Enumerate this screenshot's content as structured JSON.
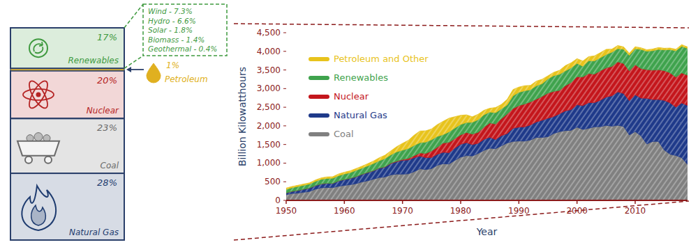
{
  "chart_data": [
    {
      "type": "stacked_bar",
      "stacked": true,
      "data_labels": true,
      "tick_labels": false,
      "series": [
        {
          "name": "Natural Gas",
          "color": "#1f3c70",
          "values": [
            28
          ],
          "value_labels": [
            "28%"
          ]
        },
        {
          "name": "Coal",
          "color": "#6b6b6b",
          "values": [
            23
          ],
          "value_labels": [
            "23%"
          ]
        },
        {
          "name": "Nuclear",
          "color": "#b52424",
          "values": [
            20
          ],
          "value_labels": [
            "20%"
          ]
        },
        {
          "name": "Petroleum",
          "color": "#e0b020",
          "values": [
            1
          ],
          "value_labels": [
            "1%"
          ]
        },
        {
          "name": "Renewables",
          "color": "#3f9a3f",
          "values": [
            17
          ],
          "value_labels": [
            "17%"
          ]
        }
      ],
      "annotations": [
        "Wind - 7.3%",
        "Hydro - 6.6%",
        "Solar - 1.8%",
        "Biomass - 1.4%",
        "Geothermal - 0.4%"
      ]
    },
    {
      "type": "area",
      "stacked": true,
      "legend": "upper left",
      "xlabel": "Year",
      "ylabel": "Billion Kilowatthours",
      "xlim": [
        1950,
        2019
      ],
      "xticks": [
        1950,
        1960,
        1970,
        1980,
        1990,
        2000,
        2010
      ],
      "ylim": [
        0,
        4500
      ],
      "yticks": [
        0,
        500,
        {
          "value": 1000,
          "label": "1,000"
        },
        {
          "value": 1500,
          "label": "1,500"
        },
        {
          "value": 2000,
          "label": "2,000"
        },
        {
          "value": 2500,
          "label": "2,500"
        },
        {
          "value": 3000,
          "label": "3,000"
        },
        {
          "value": 3500,
          "label": "3,500"
        },
        {
          "value": 4000,
          "label": "4,000"
        },
        {
          "value": 4500,
          "label": "4,500"
        }
      ],
      "x": [
        1950,
        1951,
        1952,
        1953,
        1954,
        1955,
        1956,
        1957,
        1958,
        1959,
        1960,
        1961,
        1962,
        1963,
        1964,
        1965,
        1966,
        1967,
        1968,
        1969,
        1970,
        1971,
        1972,
        1973,
        1974,
        1975,
        1976,
        1977,
        1978,
        1979,
        1980,
        1981,
        1982,
        1983,
        1984,
        1985,
        1986,
        1987,
        1988,
        1989,
        1990,
        1991,
        1992,
        1993,
        1994,
        1995,
        1996,
        1997,
        1998,
        1999,
        2000,
        2001,
        2002,
        2003,
        2004,
        2005,
        2006,
        2007,
        2008,
        2009,
        2010,
        2011,
        2012,
        2013,
        2014,
        2015,
        2016,
        2017,
        2018,
        2019
      ],
      "series": [
        {
          "name": "Coal",
          "color": "#808080",
          "values": [
            155,
            185,
            195,
            219,
            239,
            301,
            338,
            346,
            344,
            378,
            403,
            422,
            450,
            494,
            526,
            571,
            613,
            630,
            685,
            706,
            704,
            713,
            771,
            848,
            828,
            853,
            944,
            985,
            976,
            1075,
            1162,
            1203,
            1192,
            1259,
            1342,
            1402,
            1386,
            1464,
            1541,
            1584,
            1594,
            1592,
            1621,
            1690,
            1691,
            1709,
            1796,
            1845,
            1874,
            1881,
            1966,
            1904,
            1933,
            1974,
            1978,
            2013,
            1991,
            2016,
            1986,
            1756,
            1847,
            1733,
            1514,
            1581,
            1582,
            1352,
            1239,
            1206,
            1146,
            965
          ]
        },
        {
          "name": "Natural Gas",
          "color": "#1f3a8a",
          "values": [
            45,
            57,
            72,
            81,
            94,
            95,
            104,
            114,
            111,
            146,
            158,
            169,
            184,
            202,
            220,
            222,
            251,
            265,
            304,
            333,
            373,
            374,
            376,
            341,
            320,
            300,
            295,
            306,
            305,
            329,
            346,
            346,
            305,
            274,
            297,
            292,
            249,
            273,
            253,
            352,
            373,
            382,
            404,
            415,
            460,
            496,
            455,
            479,
            531,
            556,
            601,
            639,
            691,
            650,
            710,
            761,
            816,
            897,
            883,
            921,
            988,
            1014,
            1226,
            1125,
            1127,
            1333,
            1379,
            1297,
            1469,
            1586
          ]
        },
        {
          "name": "Nuclear",
          "color": "#c4161c",
          "values": [
            0,
            0,
            0,
            0,
            0,
            0,
            0,
            0,
            0.2,
            0.2,
            0.5,
            1.7,
            2.3,
            3.2,
            3.3,
            3.7,
            5.5,
            7.7,
            12.5,
            13.9,
            21.8,
            38.1,
            54.1,
            83.5,
            114,
            173,
            191,
            251,
            276,
            255,
            251,
            273,
            283,
            294,
            328,
            384,
            414,
            455,
            527,
            529,
            577,
            613,
            619,
            610,
            640,
            673,
            675,
            629,
            674,
            728,
            754,
            769,
            780,
            764,
            789,
            782,
            787,
            806,
            806,
            799,
            807,
            790,
            769,
            789,
            797,
            797,
            806,
            805,
            807,
            809
          ]
        },
        {
          "name": "Renewables",
          "color": "#3fa34d",
          "values": [
            96,
            101,
            106,
            106,
            107,
            113,
            123,
            130,
            140,
            138,
            146,
            152,
            169,
            166,
            177,
            194,
            195,
            222,
            223,
            251,
            248,
            267,
            276,
            275,
            304,
            303,
            287,
            223,
            284,
            284,
            279,
            267,
            317,
            341,
            331,
            294,
            305,
            265,
            242,
            340,
            357,
            356,
            327,
            360,
            340,
            384,
            422,
            432,
            398,
            393,
            357,
            288,
            344,
            355,
            351,
            358,
            385,
            352,
            380,
            417,
            427,
            513,
            494,
            522,
            546,
            556,
            624,
            708,
            713,
            720
          ]
        },
        {
          "name": "Petroleum and Other",
          "color": "#e8c31c",
          "values": [
            34,
            30,
            32,
            33,
            30,
            37,
            37,
            40,
            40,
            47,
            48,
            49,
            48,
            52,
            57,
            65,
            79,
            89,
            104,
            138,
            184,
            220,
            274,
            314,
            301,
            289,
            320,
            358,
            365,
            303,
            246,
            206,
            146,
            144,
            120,
            100,
            137,
            118,
            149,
            170,
            140,
            135,
            115,
            125,
            120,
            80,
            90,
            105,
            140,
            135,
            125,
            140,
            110,
            135,
            135,
            140,
            80,
            85,
            65,
            55,
            55,
            45,
            40,
            45,
            50,
            45,
            40,
            40,
            45,
            38
          ]
        }
      ]
    }
  ]
}
